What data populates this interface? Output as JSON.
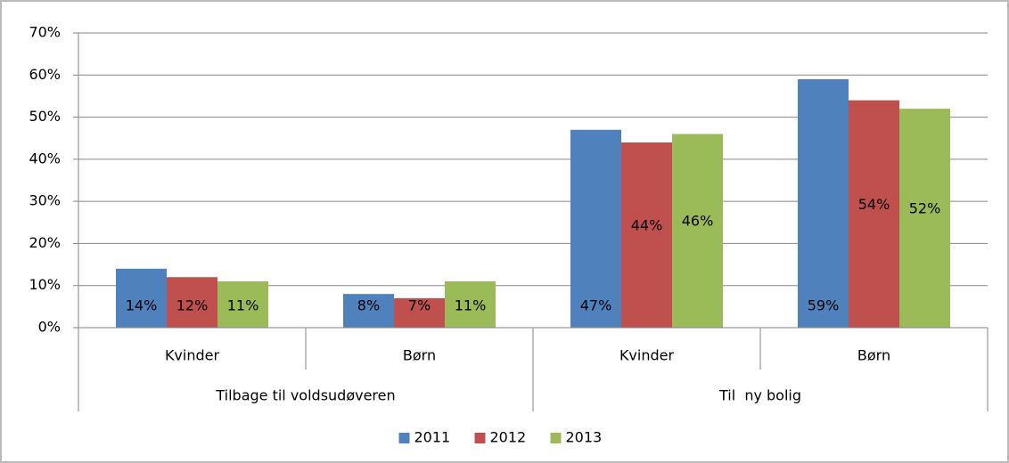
{
  "chart_data": {
    "type": "bar",
    "categories": [
      "Kvinder",
      "Børn",
      "Kvinder",
      "Børn"
    ],
    "category_groups": [
      {
        "name": "Tilbage til voldsudøveren",
        "span": 2
      },
      {
        "name": "Til  ny bolig",
        "span": 2
      }
    ],
    "series": [
      {
        "name": "2011",
        "color": "#4f81bd",
        "values": [
          14,
          8,
          47,
          59
        ],
        "value_labels": [
          "14%",
          "8%",
          "47%",
          "59%"
        ]
      },
      {
        "name": "2012",
        "color": "#c0504d",
        "values": [
          12,
          7,
          44,
          54
        ],
        "value_labels": [
          "12%",
          "7%",
          "44%",
          "54%"
        ]
      },
      {
        "name": "2013",
        "color": "#9bbb59",
        "values": [
          11,
          11,
          46,
          52
        ],
        "value_labels": [
          "11%",
          "11%",
          "46%",
          "52%"
        ]
      }
    ],
    "ylim": [
      0,
      70
    ],
    "yticks": [
      {
        "value": 0,
        "label": "0%"
      },
      {
        "value": 10,
        "label": "10%"
      },
      {
        "value": 20,
        "label": "20%"
      },
      {
        "value": 30,
        "label": "30%"
      },
      {
        "value": 40,
        "label": "40%"
      },
      {
        "value": 50,
        "label": "50%"
      },
      {
        "value": 60,
        "label": "60%"
      },
      {
        "value": 70,
        "label": "70%"
      }
    ],
    "grid": true,
    "legend": "bottom"
  }
}
